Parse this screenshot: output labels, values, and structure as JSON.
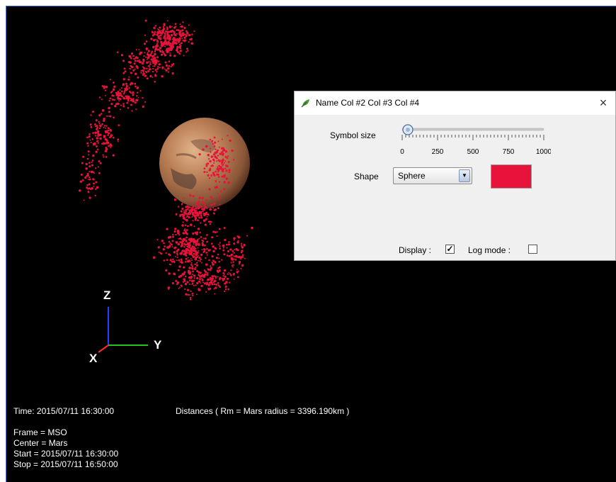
{
  "dialog": {
    "title": "Name Col #2 Col #3 Col #4",
    "close_glyph": "×",
    "icon": "leaf-edit-icon",
    "symbol_size": {
      "label": "Symbol size",
      "value": 40,
      "min": 0,
      "max": 1000,
      "ticks": [
        "0",
        "250",
        "500",
        "750",
        "1000"
      ]
    },
    "shape": {
      "label": "Shape",
      "selected": "Sphere"
    },
    "color": "#e8133a",
    "display": {
      "label": "Display :",
      "checked": true,
      "check_glyph": "✓"
    },
    "log_mode": {
      "label": "Log mode :",
      "checked": false
    }
  },
  "axes": {
    "z": "Z",
    "y": "Y",
    "x": "X"
  },
  "info": {
    "time": "Time: 2015/07/11 16:30:00",
    "distances": "Distances ( Rm = Mars radius = 3396.190km )",
    "frame": "Frame = MSO",
    "center": "Center = Mars",
    "start": "Start = 2015/07/11 16:30:00",
    "stop": "Stop = 2015/07/11 16:50:00"
  },
  "colors": {
    "points": "#e8133a",
    "axis_z": "#2a3cff",
    "axis_y": "#23c323",
    "axis_x": "#ff2a2a"
  }
}
